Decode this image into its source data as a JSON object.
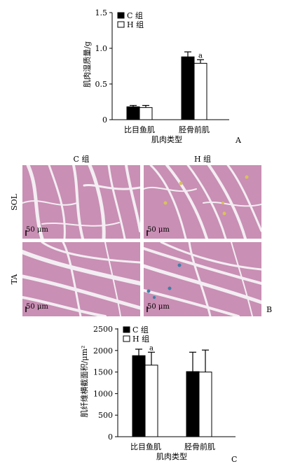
{
  "chart_data": [
    {
      "type": "bar",
      "panel_label": "A",
      "categories": [
        "比目鱼肌",
        "胫骨前肌"
      ],
      "series": [
        {
          "name": "C 组",
          "values": [
            0.18,
            0.88
          ],
          "errors": [
            0.02,
            0.07
          ],
          "color": "#000000"
        },
        {
          "name": "H 组",
          "values": [
            0.17,
            0.79
          ],
          "errors": [
            0.03,
            0.05
          ],
          "color": "#ffffff"
        }
      ],
      "xlabel": "肌肉类型",
      "ylabel": "肌肉湿质量/g",
      "ylim": [
        0,
        1.5
      ],
      "yticks": [
        "0",
        "0.5",
        "1.0",
        "1.5"
      ],
      "legend": "top-left",
      "annotations": [
        {
          "text": "a",
          "category": 1,
          "series": 1
        }
      ]
    },
    {
      "type": "bar",
      "panel_label": "C",
      "categories": [
        "比目鱼肌",
        "胫骨前肌"
      ],
      "series": [
        {
          "name": "C 组",
          "values": [
            1880,
            1510
          ],
          "errors": [
            150,
            450
          ],
          "color": "#000000"
        },
        {
          "name": "H 组",
          "values": [
            1660,
            1500
          ],
          "errors": [
            300,
            510
          ],
          "color": "#ffffff"
        }
      ],
      "xlabel": "肌肉类型",
      "ylabel": "肌纤维横截面积/μm²",
      "ylim": [
        0,
        2500
      ],
      "yticks": [
        "0",
        "500",
        "1000",
        "1500",
        "2000",
        "2500"
      ],
      "legend": "top-left",
      "annotations": [
        {
          "text": "a",
          "category": 0,
          "series": 1
        }
      ]
    }
  ],
  "histology": {
    "panel_label": "B",
    "columns": [
      "C 组",
      "H 组"
    ],
    "rows": [
      "SOL",
      "TA"
    ],
    "scale_bar": "50 μm",
    "stain_color": "#c98fb4",
    "gap_color": "#f3eef3",
    "marker_colors": [
      "#d9c25a",
      "#3f7fa8"
    ]
  }
}
